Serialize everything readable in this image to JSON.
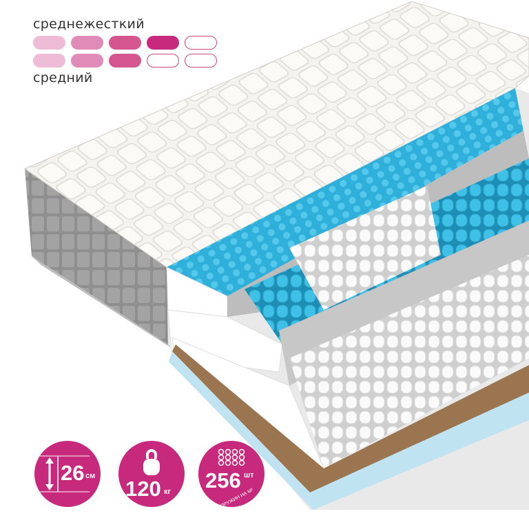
{
  "firmness": {
    "top_label": "среднежесткий",
    "bottom_label": "средний",
    "top_level": 4,
    "bottom_level": 3,
    "max_level": 5,
    "colors": [
      "#efbcd8",
      "#e08bb8",
      "#d5558f",
      "#c72a7c"
    ]
  },
  "badges": [
    {
      "icon": "height-arrow-icon",
      "value": "26",
      "unit": "см"
    },
    {
      "icon": "kettlebell-icon",
      "value": "120",
      "unit": "кг"
    },
    {
      "icon": "springs-grid-icon",
      "value": "256",
      "unit": "шт",
      "caption": "ПРУЖИН НА М²"
    }
  ],
  "colors": {
    "brand": "#c72a7c",
    "foam_blue": "#33b5dc",
    "side_gray": "#8e8e8e",
    "coconut": "#9b7450"
  }
}
